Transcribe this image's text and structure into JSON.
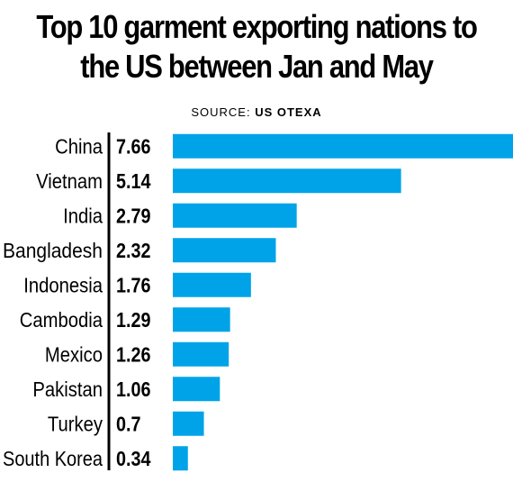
{
  "title_lines": [
    "Top 10 garment exporting nations to",
    "the US between Jan and May"
  ],
  "source_label": "SOURCE:",
  "source_name": "US OTEXA",
  "chart_data": {
    "type": "bar",
    "orientation": "horizontal",
    "categories": [
      "China",
      "Vietnam",
      "India",
      "Bangladesh",
      "Indonesia",
      "Cambodia",
      "Mexico",
      "Pakistan",
      "Turkey",
      "South Korea"
    ],
    "values": [
      7.66,
      5.14,
      2.79,
      2.32,
      1.76,
      1.29,
      1.26,
      1.06,
      0.7,
      0.34
    ],
    "value_labels": [
      "7.66",
      "5.14",
      "2.79",
      "2.32",
      "1.76",
      "1.29",
      "1.26",
      "1.06",
      "0.7",
      "0.34"
    ],
    "xlim": [
      0,
      7.66
    ],
    "bar_color": "#00a3e8",
    "grid": false,
    "legend": "none"
  }
}
